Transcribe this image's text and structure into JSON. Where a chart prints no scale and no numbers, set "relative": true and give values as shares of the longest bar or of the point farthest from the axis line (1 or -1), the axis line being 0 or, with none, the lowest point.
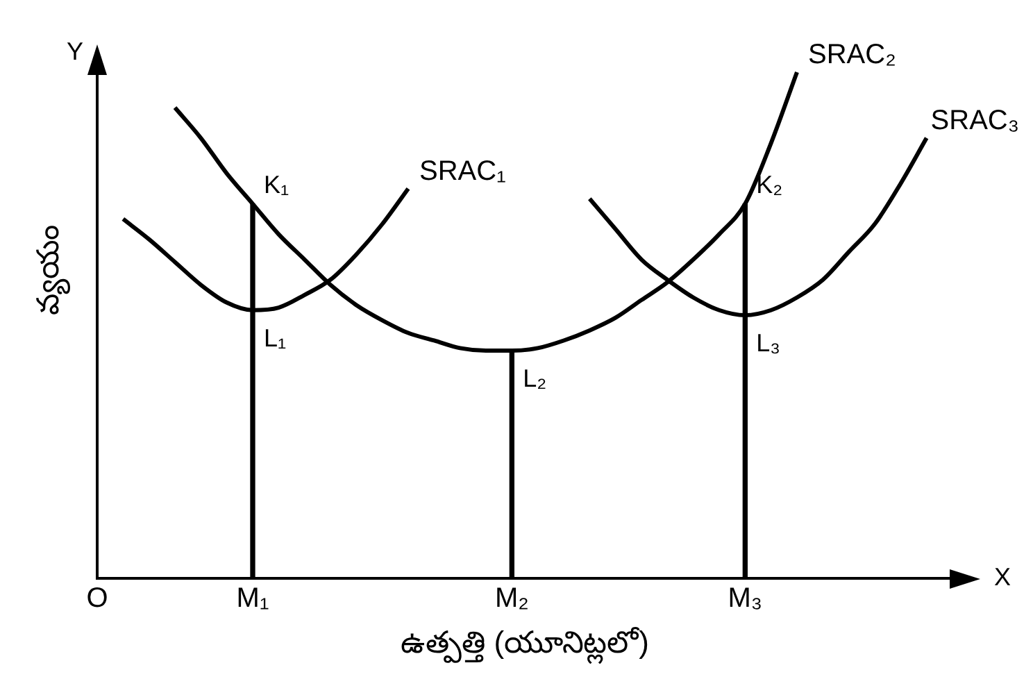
{
  "chart_data": {
    "type": "line",
    "relative": true,
    "xlabel": "ఉత్పత్తి (యూనిట్లలో)",
    "ylabel": "వ్యయం",
    "grid": false,
    "legend": false,
    "marker": "none",
    "tick_labels": "x",
    "categories": [
      "O",
      null,
      null,
      null,
      null,
      null,
      "M₁",
      null,
      null,
      null,
      null,
      null,
      null,
      null,
      null,
      null,
      "M₂",
      null,
      null,
      null,
      null,
      null,
      null,
      null,
      null,
      "M₃",
      null,
      null,
      null,
      null,
      null,
      null,
      null,
      null
    ],
    "series": [
      {
        "name": "SRAC₁",
        "color": "#000000",
        "values": [
          null,
          0.71,
          0.67,
          0.625,
          0.58,
          0.545,
          0.53,
          0.535,
          0.56,
          0.59,
          0.64,
          0.7,
          0.77,
          null,
          null,
          null,
          null,
          null,
          null,
          null,
          null,
          null,
          null,
          null,
          null,
          null,
          null,
          null,
          null,
          null,
          null,
          null,
          null,
          null
        ]
      },
      {
        "name": "SRAC₂",
        "color": "#000000",
        "values": [
          null,
          null,
          null,
          0.93,
          0.87,
          0.8,
          0.74,
          0.68,
          0.63,
          0.58,
          0.54,
          0.51,
          0.485,
          0.47,
          0.455,
          0.45,
          0.45,
          0.455,
          0.47,
          0.49,
          0.515,
          0.55,
          0.585,
          0.63,
          0.68,
          0.74,
          0.86,
          1,
          null,
          null,
          null,
          null,
          null,
          null
        ]
      },
      {
        "name": "SRAC₃",
        "color": "#000000",
        "values": [
          null,
          null,
          null,
          null,
          null,
          null,
          null,
          null,
          null,
          null,
          null,
          null,
          null,
          null,
          null,
          null,
          null,
          null,
          null,
          0.75,
          0.69,
          0.63,
          0.59,
          0.555,
          0.53,
          0.52,
          0.53,
          0.555,
          0.59,
          0.645,
          0.7,
          0.78,
          0.87,
          null
        ]
      },
      {
        "type": "bar",
        "color": "#000000",
        "values": [
          null,
          null,
          null,
          null,
          null,
          null,
          0.74,
          null,
          null,
          null,
          null,
          null,
          null,
          null,
          null,
          null,
          0.45,
          null,
          null,
          null,
          null,
          null,
          null,
          null,
          null,
          0.74,
          null,
          null,
          null,
          null,
          null,
          null,
          null,
          null
        ]
      }
    ],
    "annotations": [
      "Y",
      "X",
      {
        "text": "K₁",
        "x": "M₁",
        "y": 0.74
      },
      {
        "text": "L₁",
        "x": "M₁",
        "y": 0.53
      },
      {
        "text": "L₂",
        "x": "M₂",
        "y": 0.45
      },
      {
        "text": "K₂",
        "x": "M₃",
        "y": 0.74
      },
      {
        "text": "L₃",
        "x": "M₃",
        "y": 0.52
      }
    ]
  }
}
